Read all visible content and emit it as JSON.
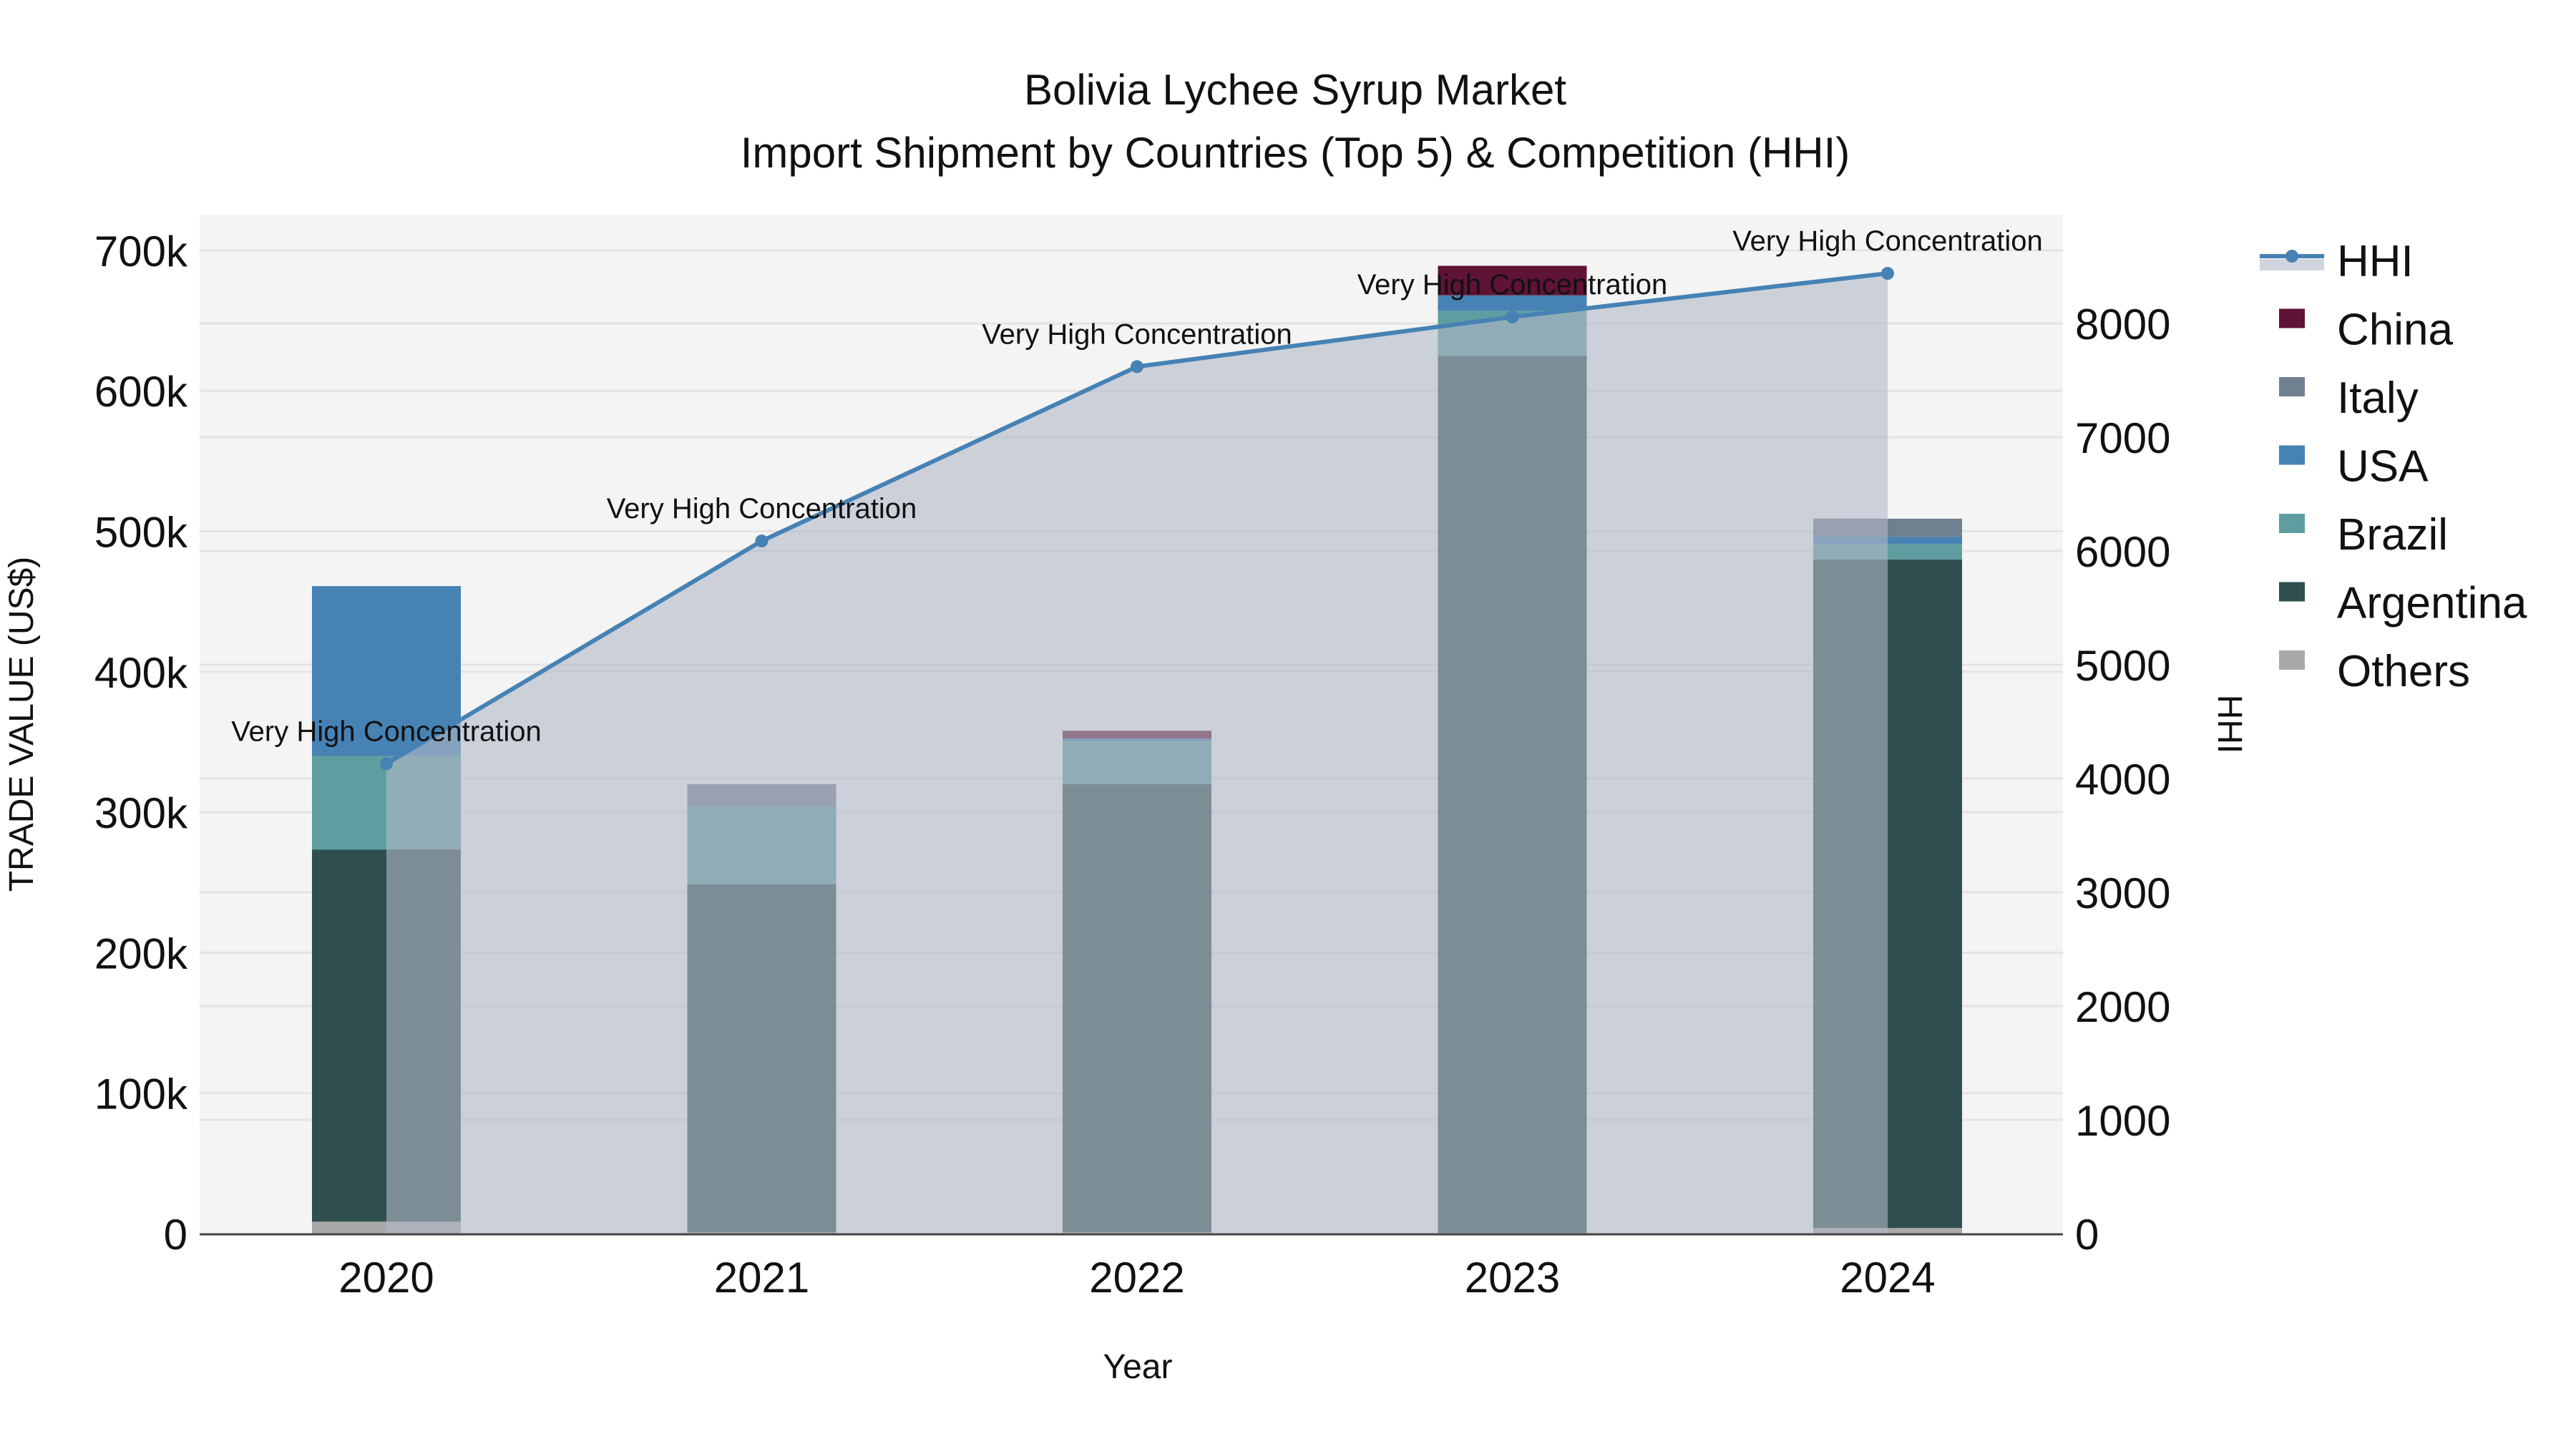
{
  "chart_data": {
    "type": "bar",
    "title": "Bolivia Lychee Syrup Market",
    "subtitle": "Import Shipment by Countries (Top 5) & Competition (HHI)",
    "xlabel": "Year",
    "ylabel": "TRADE VALUE (US$)",
    "y2label": "HHI",
    "categories": [
      "2020",
      "2021",
      "2022",
      "2023",
      "2024"
    ],
    "ylim": [
      0,
      725000
    ],
    "y2lim": [
      0,
      9100
    ],
    "yticks": [
      0,
      100000,
      200000,
      300000,
      400000,
      500000,
      600000,
      700000
    ],
    "ytick_labels": [
      "0",
      "100k",
      "200k",
      "300k",
      "400k",
      "500k",
      "600k",
      "700k"
    ],
    "y2ticks": [
      0,
      1000,
      2000,
      3000,
      4000,
      5000,
      6000,
      7000,
      8000
    ],
    "y2tick_labels": [
      "0",
      "1000",
      "2000",
      "3000",
      "4000",
      "5000",
      "6000",
      "7000",
      "8000"
    ],
    "grid": true,
    "legend_position": "right",
    "stack_order": [
      "Others",
      "Argentina",
      "Brazil",
      "USA",
      "Italy",
      "China"
    ],
    "series": [
      {
        "name": "Others",
        "color": "#A9A9A9",
        "values": [
          8500,
          1000,
          1000,
          500,
          4000
        ]
      },
      {
        "name": "Argentina",
        "color": "#2F4F4F",
        "values": [
          265000,
          247600,
          319000,
          624500,
          476000
        ]
      },
      {
        "name": "Brazil",
        "color": "#5F9EA0",
        "values": [
          66500,
          55400,
          30500,
          32000,
          11000
        ]
      },
      {
        "name": "USA",
        "color": "#4682B4",
        "values": [
          121000,
          0,
          2000,
          11000,
          5000
        ]
      },
      {
        "name": "Italy",
        "color": "#708090",
        "values": [
          0,
          16000,
          0,
          0,
          13000
        ]
      },
      {
        "name": "China",
        "color": "#5F1336",
        "values": [
          0,
          0,
          5500,
          21000,
          0
        ]
      }
    ],
    "hhi": {
      "name": "HHI",
      "color": "#4682B4",
      "fill": "rgba(176,184,198,0.6)",
      "values": [
        4130,
        6088,
        7620,
        8057,
        8440
      ],
      "annotations": [
        "Very High Concentration",
        "Very High Concentration",
        "Very High Concentration",
        "Very High Concentration",
        "Very High Concentration"
      ]
    },
    "legend": [
      "HHI",
      "China",
      "Italy",
      "USA",
      "Brazil",
      "Argentina",
      "Others"
    ]
  },
  "colors": {
    "plot_bg": "#F4F4F4",
    "grid": "#E3E3E3",
    "axis_line": "#444444"
  }
}
